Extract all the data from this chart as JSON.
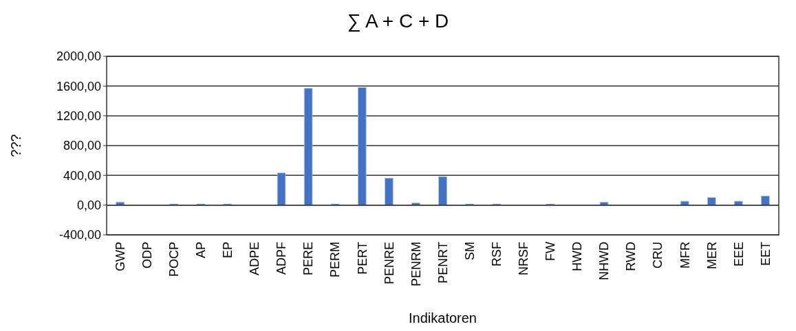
{
  "chart_data": {
    "type": "bar",
    "title": "∑ A + C + D",
    "xlabel": "Indikatoren",
    "ylabel": "???",
    "categories": [
      "GWP",
      "ODP",
      "POCP",
      "AP",
      "EP",
      "ADPE",
      "ADPF",
      "PERE",
      "PERM",
      "PERT",
      "PENRE",
      "PENRM",
      "PENRT",
      "SM",
      "RSF",
      "NRSF",
      "FW",
      "HWD",
      "NHWD",
      "RWD",
      "CRU",
      "MFR",
      "MER",
      "EEE",
      "EET"
    ],
    "values": [
      40,
      0,
      15,
      15,
      15,
      0,
      432,
      1569,
      15,
      1582,
      362,
      28,
      383,
      15,
      15,
      0,
      15,
      0,
      40,
      0,
      0,
      52,
      101,
      52,
      123
    ],
    "color": "#4472c4",
    "ylim": [
      -400,
      2000
    ],
    "yticks": [
      {
        "value": -400,
        "label": "-400,00"
      },
      {
        "value": 0,
        "label": "0,00"
      },
      {
        "value": 400,
        "label": "400,00"
      },
      {
        "value": 800,
        "label": "800,00"
      },
      {
        "value": 1200,
        "label": "1200,00"
      },
      {
        "value": 1600,
        "label": "1600,00"
      },
      {
        "value": 2000,
        "label": "2000,00"
      }
    ],
    "grid": "y"
  }
}
